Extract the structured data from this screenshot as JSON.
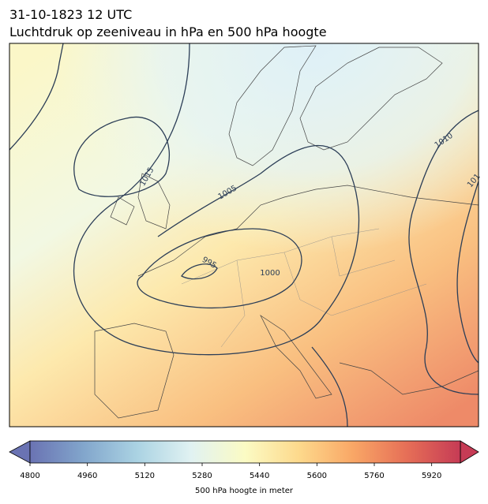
{
  "header": {
    "title": "31-10-1823 12 UTC",
    "subtitle": "Luchtdruk op zeeniveau in hPa en 500 hPa hoogte"
  },
  "contour_labels": [
    "1015",
    "1005",
    "995",
    "1000",
    "1010",
    "101"
  ],
  "colorbar": {
    "label": "500 hPa hoogte in meter",
    "lim": [
      4800,
      6000
    ],
    "ticks": [
      4800,
      4960,
      5120,
      5280,
      5440,
      5600,
      5760,
      5920
    ],
    "colors": [
      "#6a73b3",
      "#82a6cc",
      "#abd3e3",
      "#e1f2f2",
      "#fbfbc4",
      "#fdd98c",
      "#f9a766",
      "#e66f57",
      "#c63b55"
    ]
  }
}
